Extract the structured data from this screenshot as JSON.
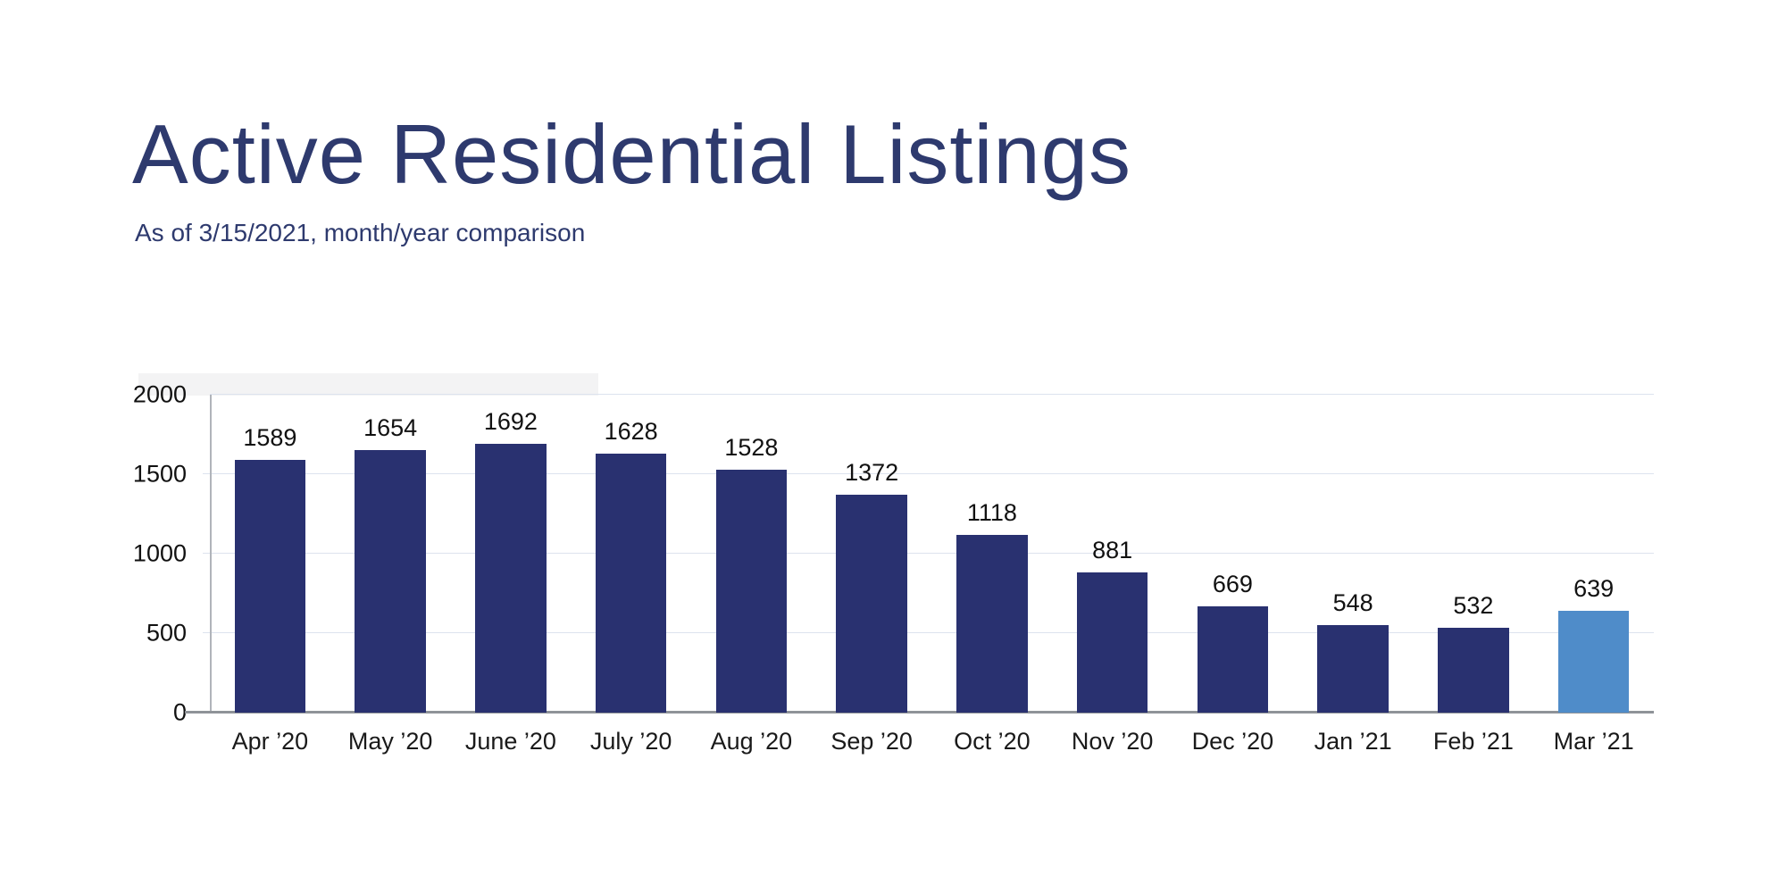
{
  "chart_data": {
    "type": "bar",
    "title": "Active Residential Listings",
    "subtitle": "As of 3/15/2021, month/year comparison",
    "categories": [
      "Apr ’20",
      "May ’20",
      "June ’20",
      "July ’20",
      "Aug ’20",
      "Sep ’20",
      "Oct ’20",
      "Nov ’20",
      "Dec ’20",
      "Jan ’21",
      "Feb ’21",
      "Mar ’21"
    ],
    "values": [
      1589,
      1654,
      1692,
      1628,
      1528,
      1372,
      1118,
      881,
      669,
      548,
      532,
      639
    ],
    "data_labels": [
      "1589",
      "1654",
      "1692",
      "1628",
      "1528",
      "1372",
      "1118",
      "881",
      "669",
      "548",
      "532",
      "639"
    ],
    "highlight_index": 11,
    "xlabel": "",
    "ylabel": "",
    "ylim": [
      0,
      2000
    ],
    "yticks": [
      0,
      500,
      1000,
      1500,
      2000
    ],
    "ytick_labels": [
      "0",
      "500",
      "1000",
      "1500",
      "2000"
    ],
    "grid": true,
    "legend": "none"
  },
  "theme": {
    "background": "#ffffff",
    "title_color": "#2e3a6e",
    "subtitle_color": "#2e3a6e",
    "bar_color": "#293170",
    "highlight_bar_color": "#4f8cc9",
    "grid_color": "#dde3ee",
    "axis_color": "#b0b4ba",
    "baseline_color": "#8f9398",
    "label_color": "#111111"
  }
}
